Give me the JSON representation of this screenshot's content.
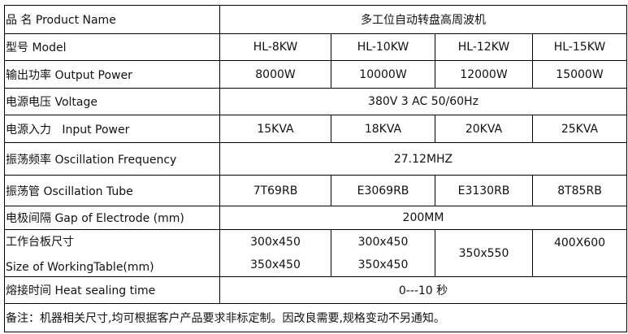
{
  "rows": {
    "product_name": {
      "label": "品  名 Product Name",
      "value": "多工位自动转盘高周波机"
    },
    "model": {
      "label": "型号 Model",
      "values": [
        "HL-8KW",
        "HL-10KW",
        "HL-12KW",
        "HL-15KW"
      ]
    },
    "output_power": {
      "label": "输出功率 Output Power",
      "values": [
        "8000W",
        "10000W",
        "12000W",
        "15000W"
      ]
    },
    "voltage": {
      "label": "电源电压 Voltage",
      "value": "380V 3 AC 50/60Hz"
    },
    "input_power": {
      "label": "电源入力   Input Power",
      "values": [
        "15KVA",
        "18KVA",
        "20KVA",
        "25KVA"
      ]
    },
    "oscillation_frequency": {
      "label": "振荡频率 Oscillation Frequency",
      "value": "27.12MHZ"
    },
    "oscillation_tube": {
      "label": "振荡管 Oscillation Tube",
      "values": [
        "7T69RB",
        "E3069RB",
        "E3130RB",
        "8T85RB"
      ]
    },
    "electrode_gap": {
      "label": "电极间隔 Gap of Electrode (mm)",
      "value": "200MM"
    },
    "working_table": {
      "label_cn": "工作台板尺寸",
      "label_en": "Size of WorkingTable(mm)",
      "col1": [
        "300x450",
        "350x450"
      ],
      "col2": [
        "300x450",
        "350x450"
      ],
      "col3": "350x550",
      "col4": "400X600"
    },
    "heat_sealing": {
      "label": "熔接时间 Heat sealing time",
      "value": "0---10 秒"
    }
  },
  "note": "备注：机器相关尺寸,均可根据客户产品要求非标定制。因改良需要,规格变动不另通知。"
}
